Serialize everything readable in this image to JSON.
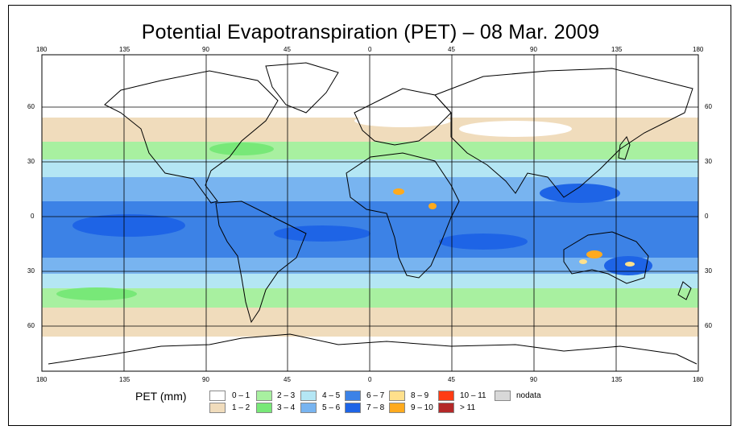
{
  "title": "Potential Evapotranspiration (PET) – 08 Mar. 2009",
  "map": {
    "lon_ticks": [
      "180",
      "135",
      "90",
      "45",
      "0",
      "45",
      "90",
      "135",
      "180"
    ],
    "lat_ticks": [
      "60",
      "30",
      "0",
      "30",
      "60"
    ]
  },
  "legend": {
    "title": "PET (mm)",
    "items": [
      {
        "label": "0 – 1",
        "color": "#ffffff"
      },
      {
        "label": "1 – 2",
        "color": "#f0dcbc"
      },
      {
        "label": "2 – 3",
        "color": "#a8f0a0"
      },
      {
        "label": "3 – 4",
        "color": "#78e878"
      },
      {
        "label": "4 – 5",
        "color": "#b4e6f4"
      },
      {
        "label": "5 – 6",
        "color": "#78b4f0"
      },
      {
        "label": "6 – 7",
        "color": "#3c82e6"
      },
      {
        "label": "7 – 8",
        "color": "#1e64e6"
      },
      {
        "label": "8 – 9",
        "color": "#ffe08c"
      },
      {
        "label": "9 – 10",
        "color": "#ffaa1e"
      },
      {
        "label": "10 – 11",
        "color": "#ff3c14"
      },
      {
        "label": "> 11",
        "color": "#b42828"
      },
      {
        "label": "nodata",
        "color": "#d8d8d8"
      }
    ]
  }
}
